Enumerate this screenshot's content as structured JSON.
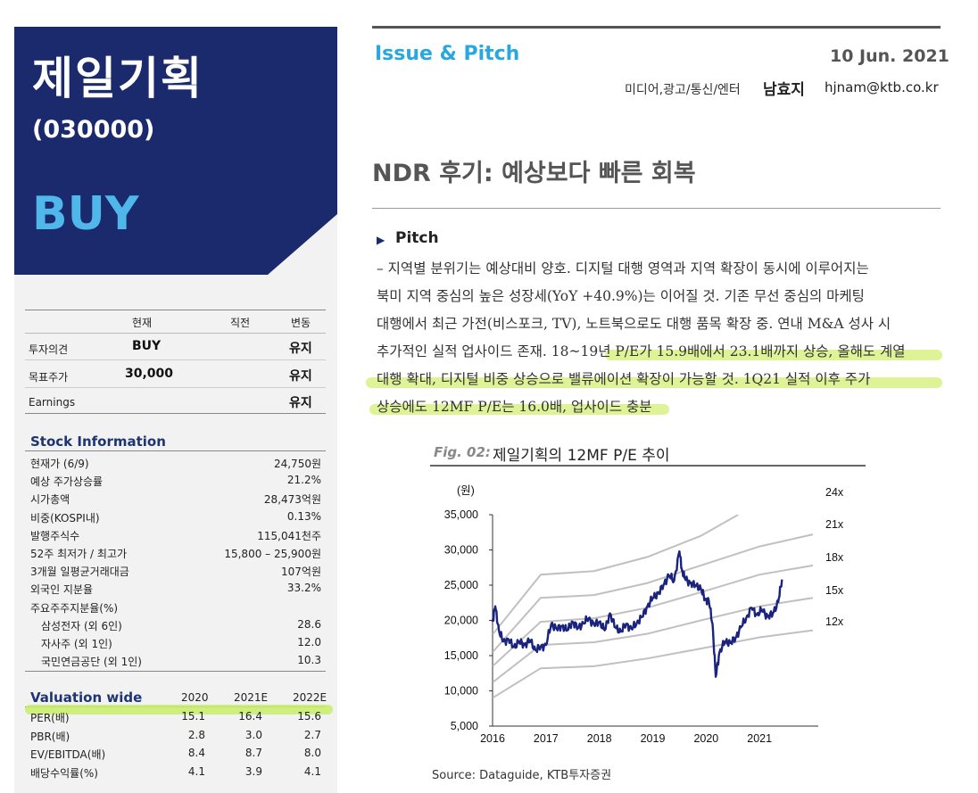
{
  "company": {
    "name": "제일기획",
    "code": "(030000)",
    "rating": "BUY"
  },
  "rating_table": {
    "headers": [
      "현재",
      "직전",
      "변동"
    ],
    "rows": [
      {
        "label": "투자의견",
        "current": "BUY",
        "prev": "",
        "change": "유지"
      },
      {
        "label": "목표주가",
        "current": "30,000",
        "prev": "",
        "change": "유지"
      },
      {
        "label": "Earnings",
        "current": "",
        "prev": "",
        "change": "유지"
      }
    ]
  },
  "stock_info": {
    "title": "Stock Information",
    "rows": [
      {
        "label": "현재가 (6/9)",
        "value": "24,750원"
      },
      {
        "label": "예상 주가상승률",
        "value": "21.2%"
      },
      {
        "label": "시가총액",
        "value": "28,473억원"
      },
      {
        "label": "비중(KOSPI내)",
        "value": "0.13%"
      },
      {
        "label": "발행주식수",
        "value": "115,041천주"
      },
      {
        "label": "52주 최저가 / 최고가",
        "value": "15,800 – 25,900원"
      },
      {
        "label": "3개월 일평균거래대금",
        "value": "107억원"
      },
      {
        "label": "외국인 지분율",
        "value": "33.2%"
      },
      {
        "label": "주요주주지분율(%)",
        "value": ""
      },
      {
        "label": "삼성전자 (외 6인)",
        "value": "28.6"
      },
      {
        "label": "자사주 (외 1인)",
        "value": "12.0"
      },
      {
        "label": "국민연금공단 (외 1인)",
        "value": "10.3"
      }
    ]
  },
  "valuation": {
    "title": "Valuation wide",
    "headers": [
      "2020",
      "2021E",
      "2022E"
    ],
    "rows": [
      {
        "label": "PER(배)",
        "v": [
          "15.1",
          "16.4",
          "15.6"
        ]
      },
      {
        "label": "PBR(배)",
        "v": [
          "2.8",
          "3.0",
          "2.7"
        ]
      },
      {
        "label": "EV/EBITDA(배)",
        "v": [
          "8.4",
          "8.7",
          "8.0"
        ]
      },
      {
        "label": "배당수익률(%)",
        "v": [
          "4.1",
          "3.9",
          "4.1"
        ]
      }
    ]
  },
  "header": {
    "section": "Issue & Pitch",
    "date": "10 Jun. 2021",
    "category": "미디어,광고/통신/엔터",
    "analyst": "남효지",
    "email": "hjnam@ktb.co.kr"
  },
  "headline": "NDR 후기: 예상보다 빠른 회복",
  "pitch": {
    "title": "Pitch",
    "lines": [
      "– 지역별 분위기는 예상대비 양호. 디지털 대행 영역과 지역 확장이 동시에 이루어지는",
      "북미 지역 중심의 높은 성장세(YoY +40.9%)는 이어질 것. 기존 무선 중심의 마케팅",
      "대행에서 최근 가전(비스포크, TV), 노트북으로도 대행 품목 확장 중. 연내 M&A 성사 시",
      "추가적인 실적 업사이드 존재. 18~19년 P/E가 15.9배에서 23.1배까지 상승, 올해도 계열",
      "대행 확대, 디지털 비중 상승으로 밸류에이션 확장이 가능할 것. 1Q21 실적 이후 주가",
      "상승에도 12MF P/E는 16.0배, 업사이드 충분"
    ]
  },
  "figure": {
    "label": "Fig. 02:",
    "title": "제일기획의 12MF P/E 추이",
    "source": "Source: Dataguide, KTB투자증권"
  },
  "chart_data": {
    "type": "line",
    "title": "제일기획의 12MF P/E 추이",
    "ylabel": "(원)",
    "ylim": [
      5000,
      35000
    ],
    "yticks": [
      "35,000",
      "30,000",
      "25,000",
      "20,000",
      "15,000",
      "10,000",
      "5,000"
    ],
    "ytick_values": [
      35000,
      30000,
      25000,
      20000,
      15000,
      10000,
      5000
    ],
    "xticks": [
      "2016",
      "2017",
      "2018",
      "2019",
      "2020",
      "2021"
    ],
    "xtick_values": [
      2016.0,
      2017.0,
      2018.0,
      2019.0,
      2020.0,
      2021.0
    ],
    "xlim": [
      2016.0,
      2022.1
    ],
    "price_color": "#1a237e",
    "band_color": "#c0c0c0",
    "bands": [
      {
        "name": "24x",
        "points": [
          [
            2016.0,
            18000
          ],
          [
            2016.9,
            26500
          ],
          [
            2017.9,
            27000
          ],
          [
            2018.9,
            29000
          ],
          [
            2019.9,
            32000
          ],
          [
            2020.6,
            35000
          ]
        ]
      },
      {
        "name": "21x",
        "points": [
          [
            2016.0,
            15500
          ],
          [
            2016.9,
            23200
          ],
          [
            2017.9,
            23600
          ],
          [
            2018.9,
            25300
          ],
          [
            2019.9,
            27800
          ],
          [
            2021.0,
            30500
          ],
          [
            2022.0,
            32200
          ]
        ]
      },
      {
        "name": "18x",
        "points": [
          [
            2016.0,
            13500
          ],
          [
            2016.9,
            19800
          ],
          [
            2017.9,
            20300
          ],
          [
            2018.9,
            21800
          ],
          [
            2019.9,
            24000
          ],
          [
            2021.0,
            26500
          ],
          [
            2022.0,
            27800
          ]
        ]
      },
      {
        "name": "15x",
        "points": [
          [
            2016.0,
            11200
          ],
          [
            2016.9,
            16500
          ],
          [
            2017.9,
            16900
          ],
          [
            2018.9,
            18100
          ],
          [
            2019.9,
            20000
          ],
          [
            2021.0,
            22000
          ],
          [
            2022.0,
            23200
          ]
        ]
      },
      {
        "name": "12x",
        "points": [
          [
            2016.0,
            9000
          ],
          [
            2016.9,
            13200
          ],
          [
            2017.9,
            13500
          ],
          [
            2018.9,
            14600
          ],
          [
            2019.9,
            16000
          ],
          [
            2021.0,
            17600
          ],
          [
            2022.0,
            18600
          ]
        ]
      }
    ],
    "price": [
      [
        2016.0,
        19800
      ],
      [
        2016.05,
        22000
      ],
      [
        2016.12,
        18500
      ],
      [
        2016.2,
        17000
      ],
      [
        2016.3,
        17300
      ],
      [
        2016.4,
        16200
      ],
      [
        2016.5,
        17000
      ],
      [
        2016.6,
        16500
      ],
      [
        2016.7,
        17200
      ],
      [
        2016.8,
        15800
      ],
      [
        2016.9,
        16200
      ],
      [
        2017.0,
        16500
      ],
      [
        2017.1,
        19500
      ],
      [
        2017.2,
        18800
      ],
      [
        2017.3,
        19200
      ],
      [
        2017.4,
        18600
      ],
      [
        2017.5,
        19800
      ],
      [
        2017.6,
        18900
      ],
      [
        2017.7,
        19600
      ],
      [
        2017.8,
        20300
      ],
      [
        2017.9,
        19400
      ],
      [
        2018.0,
        19800
      ],
      [
        2018.1,
        18600
      ],
      [
        2018.2,
        21000
      ],
      [
        2018.3,
        19000
      ],
      [
        2018.4,
        18400
      ],
      [
        2018.5,
        19500
      ],
      [
        2018.6,
        18800
      ],
      [
        2018.7,
        19600
      ],
      [
        2018.8,
        20500
      ],
      [
        2018.9,
        22000
      ],
      [
        2019.0,
        23200
      ],
      [
        2019.1,
        23800
      ],
      [
        2019.2,
        25000
      ],
      [
        2019.3,
        26400
      ],
      [
        2019.4,
        25600
      ],
      [
        2019.5,
        29800
      ],
      [
        2019.55,
        27000
      ],
      [
        2019.6,
        26000
      ],
      [
        2019.7,
        25300
      ],
      [
        2019.8,
        25000
      ],
      [
        2019.9,
        24500
      ],
      [
        2019.98,
        23000
      ],
      [
        2020.05,
        22800
      ],
      [
        2020.12,
        19500
      ],
      [
        2020.18,
        12000
      ],
      [
        2020.25,
        15500
      ],
      [
        2020.35,
        17000
      ],
      [
        2020.45,
        16800
      ],
      [
        2020.55,
        17500
      ],
      [
        2020.65,
        19000
      ],
      [
        2020.75,
        20300
      ],
      [
        2020.85,
        21800
      ],
      [
        2020.95,
        20800
      ],
      [
        2021.05,
        21500
      ],
      [
        2021.15,
        20500
      ],
      [
        2021.25,
        21000
      ],
      [
        2021.35,
        22600
      ],
      [
        2021.42,
        25800
      ]
    ]
  }
}
